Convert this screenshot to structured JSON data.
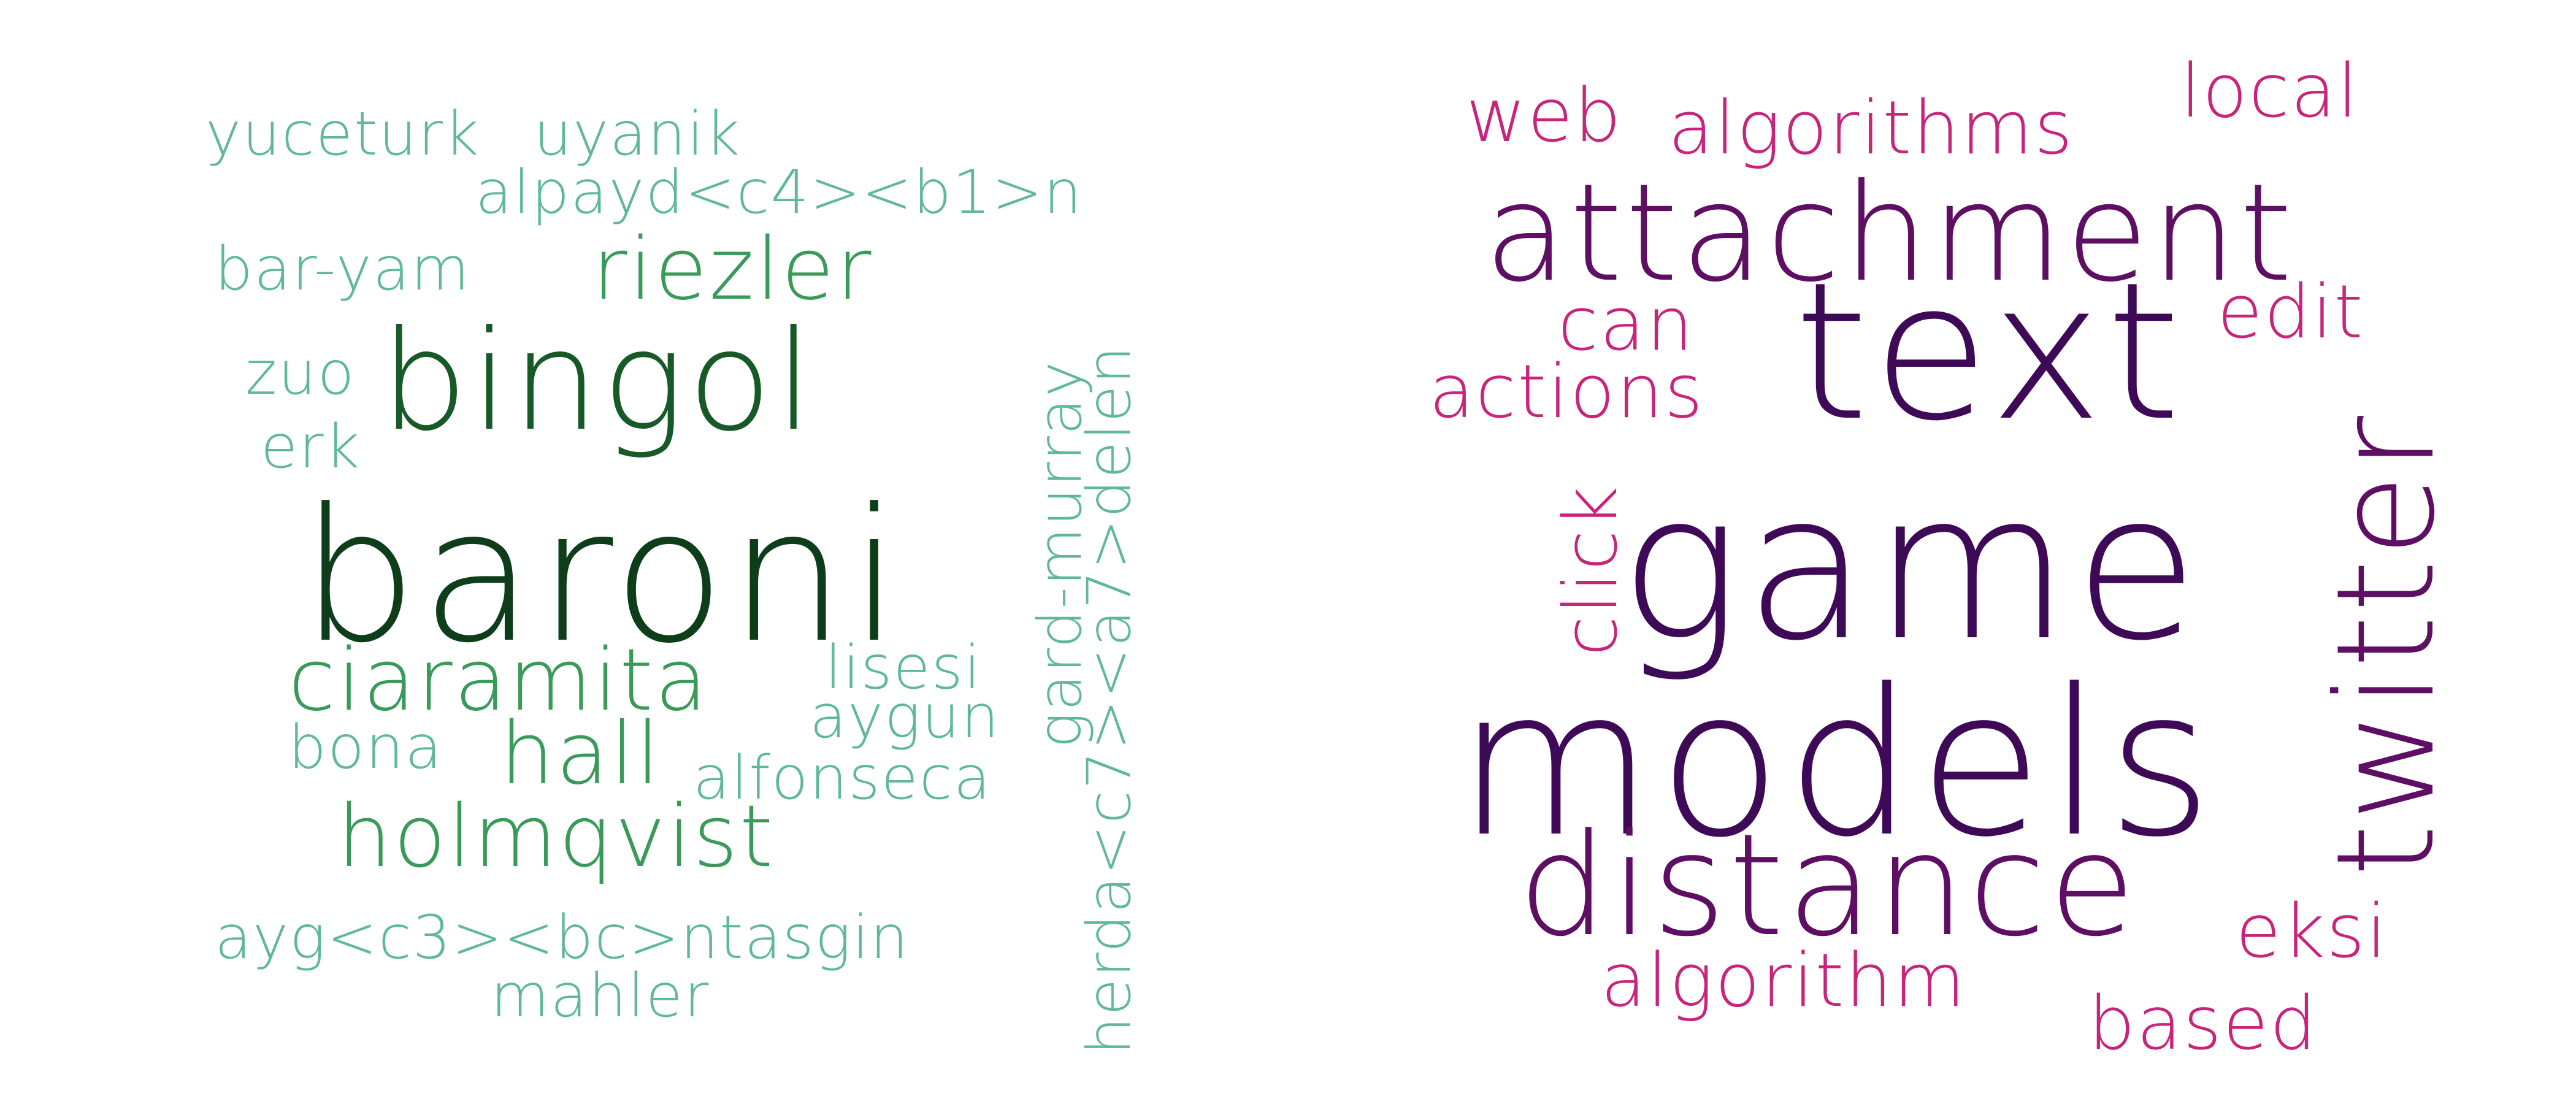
{
  "clouds": [
    {
      "name": "author-word-cloud",
      "words": [
        {
          "text": "yuceturk",
          "color": "#5fb996"
        },
        {
          "text": "uyanik",
          "color": "#5fb996"
        },
        {
          "text": "alpayd<c4><b1>n",
          "color": "#5fb996"
        },
        {
          "text": "bar-yam",
          "color": "#5fb996"
        },
        {
          "text": "riezler",
          "color": "#3a9a5a"
        },
        {
          "text": "zuo",
          "color": "#5fb996"
        },
        {
          "text": "erk",
          "color": "#5fb996"
        },
        {
          "text": "bingol",
          "color": "#185a27"
        },
        {
          "text": "baroni",
          "color": "#0e3d1a"
        },
        {
          "text": "gard-murray",
          "color": "#5fb996"
        },
        {
          "text": "herda<c7><a7>delen",
          "color": "#5fb996"
        },
        {
          "text": "lisesi",
          "color": "#5fb996"
        },
        {
          "text": "ciaramita",
          "color": "#3a9a5a"
        },
        {
          "text": "aygun",
          "color": "#5fb996"
        },
        {
          "text": "bona",
          "color": "#5fb996"
        },
        {
          "text": "hall",
          "color": "#3a9a5a"
        },
        {
          "text": "alfonseca",
          "color": "#5fb996"
        },
        {
          "text": "holmqvist",
          "color": "#3a9a5a"
        },
        {
          "text": "ayg<c3><bc>ntasgin",
          "color": "#5fb996"
        },
        {
          "text": "mahler",
          "color": "#5fb996"
        }
      ]
    },
    {
      "name": "topic-word-cloud",
      "words": [
        {
          "text": "web",
          "color": "#c8247a"
        },
        {
          "text": "algorithms",
          "color": "#c8247a"
        },
        {
          "text": "local",
          "color": "#c8247a"
        },
        {
          "text": "attachment",
          "color": "#5e0f63"
        },
        {
          "text": "can",
          "color": "#c8247a"
        },
        {
          "text": "edit",
          "color": "#c8247a"
        },
        {
          "text": "text",
          "color": "#3e0a57"
        },
        {
          "text": "actions",
          "color": "#c8247a"
        },
        {
          "text": "twitter",
          "color": "#5e0f63"
        },
        {
          "text": "click",
          "color": "#c8247a"
        },
        {
          "text": "game",
          "color": "#3e0a57"
        },
        {
          "text": "models",
          "color": "#3e0a57"
        },
        {
          "text": "distance",
          "color": "#5e0f63"
        },
        {
          "text": "eksi",
          "color": "#c8247a"
        },
        {
          "text": "algorithm",
          "color": "#c8247a"
        },
        {
          "text": "based",
          "color": "#c8247a"
        }
      ]
    }
  ]
}
